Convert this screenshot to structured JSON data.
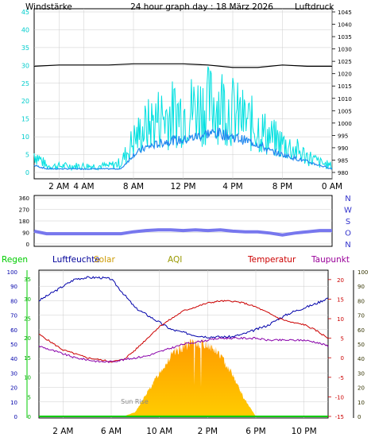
{
  "header": {
    "title": "24 hour graph day : 18 März 2026",
    "left_label": "Windstärke",
    "right_label": "Luftdruck"
  },
  "wind_panel": {
    "y_ticks": [
      "0",
      "5",
      "10",
      "15",
      "20",
      "25",
      "30",
      "35",
      "40",
      "45"
    ],
    "pressure_ticks": [
      "980",
      "985",
      "990",
      "995",
      "1000",
      "1005",
      "1010",
      "1015",
      "1020",
      "1025",
      "1030",
      "1035",
      "1040",
      "1045"
    ],
    "x_ticks": [
      "2 AM",
      "4 AM",
      "8 AM",
      "12 PM",
      "4 PM",
      "8 PM",
      "0 AM"
    ]
  },
  "direction_panel": {
    "y_ticks": [
      "0",
      "90",
      "180",
      "270",
      "360"
    ],
    "compass": [
      "N",
      "W",
      "S",
      "O",
      "N"
    ]
  },
  "bottom_panel": {
    "legend": [
      {
        "label": "Regen",
        "color": "#00cc00"
      },
      {
        "label": "Luftfeuchte",
        "color": "#000099"
      },
      {
        "label": "Solar",
        "color": "#cc9900"
      },
      {
        "label": "AQI",
        "color": "#999900"
      },
      {
        "label": "Temperatur",
        "color": "#cc0000"
      },
      {
        "label": "Taupunkt",
        "color": "#990099"
      }
    ],
    "humidity_ticks": [
      "0",
      "10",
      "20",
      "30",
      "40",
      "50",
      "60",
      "70",
      "80",
      "90",
      "100"
    ],
    "rain_ticks": [
      "0",
      "5",
      "10",
      "15",
      "20",
      "25",
      "30",
      "35"
    ],
    "temp_ticks": [
      "-15",
      "-10",
      "-5",
      "0",
      "5",
      "10",
      "15",
      "20"
    ],
    "aqi_ticks": [
      "0",
      "10",
      "20",
      "30",
      "40",
      "50",
      "60",
      "70",
      "80",
      "90",
      "100"
    ],
    "x_ticks": [
      "2 AM",
      "6 AM",
      "10 AM",
      "2 PM",
      "6 PM",
      "10 PM"
    ],
    "annotation": "Sun Rise"
  },
  "colors": {
    "wind_gust": "#00e0e0",
    "wind_avg": "#2288ee",
    "pressure": "#000000",
    "direction": "#7777ee",
    "humidity": "#0000aa",
    "temperature": "#cc0000",
    "dewpoint": "#8800aa",
    "solar_top": "#ffcc00",
    "solar_bottom": "#ff9900",
    "rain": "#00cc00"
  },
  "chart_data": [
    {
      "type": "line",
      "x_unit": "hour of day",
      "series": [
        {
          "name": "Windstärke",
          "axis": "left",
          "x": [
            0,
            1,
            2,
            3,
            4,
            5,
            6,
            7,
            8,
            9,
            10,
            11,
            12,
            13,
            14,
            15,
            16,
            17,
            18,
            19,
            20,
            21,
            22,
            23,
            24
          ],
          "values": [
            2,
            1,
            1,
            1,
            1,
            1,
            1,
            1,
            5,
            7,
            8,
            9,
            9,
            10,
            11,
            11,
            10,
            9,
            8,
            6,
            5,
            4,
            3,
            2,
            1
          ]
        },
        {
          "name": "Windstärke gust",
          "axis": "left",
          "x": [
            0,
            1,
            2,
            3,
            4,
            5,
            6,
            7,
            8,
            9,
            10,
            11,
            12,
            13,
            14,
            15,
            16,
            17,
            18,
            19,
            20,
            21,
            22,
            23,
            24
          ],
          "values": [
            6,
            2,
            2,
            2,
            2,
            2,
            2,
            3,
            10,
            14,
            17,
            18,
            19,
            20,
            21,
            22,
            19,
            16,
            14,
            11,
            9,
            7,
            5,
            3,
            2
          ]
        },
        {
          "name": "Luftdruck",
          "axis": "right",
          "x": [
            0,
            2,
            4,
            6,
            8,
            10,
            12,
            14,
            16,
            18,
            20,
            22,
            24
          ],
          "values": [
            1023,
            1023.5,
            1023.5,
            1023.5,
            1024,
            1024,
            1024,
            1023.5,
            1022.5,
            1022.5,
            1023.5,
            1023,
            1023
          ]
        }
      ],
      "ylim": [
        0,
        45
      ],
      "y2lim": [
        980,
        1045
      ],
      "xlim": [
        0,
        24
      ]
    },
    {
      "type": "line",
      "x_unit": "hour of day",
      "series": [
        {
          "name": "Windrichtung",
          "x": [
            0,
            1,
            2,
            3,
            4,
            5,
            6,
            7,
            8,
            9,
            10,
            11,
            12,
            13,
            14,
            15,
            16,
            17,
            18,
            19,
            20,
            21,
            22,
            23,
            24
          ],
          "values": [
            100,
            80,
            80,
            80,
            80,
            80,
            80,
            80,
            95,
            105,
            110,
            110,
            105,
            110,
            105,
            110,
            100,
            95,
            95,
            85,
            70,
            85,
            95,
            105,
            105
          ]
        }
      ],
      "ylim": [
        0,
        360
      ],
      "xlim": [
        0,
        24
      ]
    },
    {
      "type": "line",
      "x_unit": "hour of day",
      "series": [
        {
          "name": "Luftfeuchte",
          "axis": "humidity",
          "x": [
            0,
            1,
            2,
            3,
            4,
            5,
            6,
            7,
            8,
            9,
            10,
            11,
            12,
            13,
            14,
            15,
            16,
            17,
            18,
            19,
            20,
            21,
            22,
            23,
            24
          ],
          "values": [
            80,
            85,
            90,
            95,
            96,
            96,
            95,
            85,
            75,
            70,
            65,
            60,
            58,
            56,
            55,
            55,
            55,
            57,
            60,
            63,
            68,
            72,
            75,
            78,
            82
          ]
        },
        {
          "name": "Temperatur",
          "axis": "temp",
          "x": [
            0,
            1,
            2,
            3,
            4,
            5,
            6,
            7,
            8,
            9,
            10,
            11,
            12,
            13,
            14,
            15,
            16,
            17,
            18,
            19,
            20,
            21,
            22,
            23,
            24
          ],
          "values": [
            6,
            4,
            2,
            1,
            0,
            -0.5,
            -1,
            -0.5,
            2,
            5,
            8,
            10,
            12,
            13,
            14,
            14.5,
            14.5,
            14,
            13,
            11.5,
            10,
            9,
            8.5,
            7,
            5
          ]
        },
        {
          "name": "Taupunkt",
          "axis": "temp",
          "x": [
            0,
            1,
            2,
            3,
            4,
            5,
            6,
            7,
            8,
            9,
            10,
            11,
            12,
            13,
            14,
            15,
            16,
            17,
            18,
            19,
            20,
            21,
            22,
            23,
            24
          ],
          "values": [
            3,
            2,
            1,
            0,
            -0.5,
            -1,
            -1,
            -0.5,
            0,
            0.5,
            1.5,
            2.5,
            3.5,
            4,
            4.5,
            5,
            5,
            5,
            5,
            4.5,
            4.5,
            4.5,
            4.5,
            4,
            3
          ]
        },
        {
          "name": "Solar",
          "axis": "aqi",
          "x": [
            7,
            8,
            9,
            10,
            11,
            12,
            13,
            14,
            15,
            16,
            17,
            18
          ],
          "values": [
            0,
            3,
            17,
            31,
            43,
            50,
            52,
            51,
            44,
            31,
            13,
            0
          ]
        },
        {
          "name": "Regen",
          "axis": "rain",
          "x": [
            0,
            24
          ],
          "values": [
            0,
            0
          ]
        }
      ],
      "humidity_lim": [
        0,
        100
      ],
      "rain_lim": [
        0,
        35
      ],
      "temp_lim": [
        -15,
        22
      ],
      "aqi_lim": [
        0,
        100
      ],
      "xlim": [
        0,
        24
      ]
    }
  ]
}
